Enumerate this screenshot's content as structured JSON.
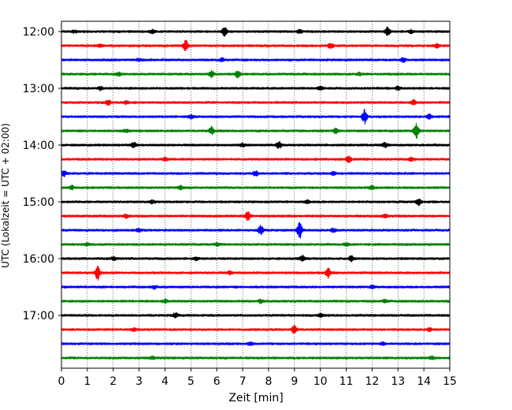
{
  "chart_data": {
    "type": "line",
    "title": "",
    "xlabel": "Zeit  [min]",
    "ylabel": "UTC (Lokalzeit = UTC + 02:00)",
    "xlim": [
      0,
      15
    ],
    "xticks": [
      0,
      1,
      2,
      3,
      4,
      5,
      6,
      7,
      8,
      9,
      10,
      11,
      12,
      13,
      14,
      15
    ],
    "yticks": [
      "12:00",
      "13:00",
      "14:00",
      "15:00",
      "16:00",
      "17:00"
    ],
    "grid": "vertical-dotted",
    "trace_interval_min": 15,
    "colors": [
      "#000000",
      "#ff0000",
      "#0000ff",
      "#008000"
    ],
    "traces": [
      {
        "start": "12:00",
        "color": "#000000",
        "events": [
          [
            6.3,
            6
          ],
          [
            12.6,
            5
          ],
          [
            3.5,
            2
          ],
          [
            9.2,
            2
          ],
          [
            13.5,
            2
          ],
          [
            0.5,
            1.5
          ]
        ]
      },
      {
        "start": "12:15",
        "color": "#ff0000",
        "events": [
          [
            4.8,
            7
          ],
          [
            10.4,
            3
          ],
          [
            14.5,
            2
          ],
          [
            1.5,
            1.5
          ]
        ]
      },
      {
        "start": "12:30",
        "color": "#0000ff",
        "events": [
          [
            6.2,
            2
          ],
          [
            13.2,
            3
          ],
          [
            3.0,
            1.5
          ]
        ]
      },
      {
        "start": "12:45",
        "color": "#008000",
        "events": [
          [
            5.8,
            4
          ],
          [
            6.8,
            4
          ],
          [
            2.2,
            2
          ],
          [
            11.5,
            2
          ]
        ]
      },
      {
        "start": "13:00",
        "color": "#000000",
        "events": [
          [
            1.5,
            2
          ],
          [
            10.0,
            2
          ],
          [
            13.0,
            2
          ]
        ]
      },
      {
        "start": "13:15",
        "color": "#ff0000",
        "events": [
          [
            1.8,
            3
          ],
          [
            2.5,
            2
          ],
          [
            13.6,
            3
          ]
        ]
      },
      {
        "start": "13:30",
        "color": "#0000ff",
        "events": [
          [
            11.7,
            9
          ],
          [
            14.2,
            3
          ],
          [
            5.0,
            2
          ]
        ]
      },
      {
        "start": "13:45",
        "color": "#008000",
        "events": [
          [
            13.7,
            10
          ],
          [
            5.8,
            5
          ],
          [
            10.6,
            3
          ],
          [
            2.5,
            2
          ]
        ]
      },
      {
        "start": "14:00",
        "color": "#000000",
        "events": [
          [
            8.4,
            5
          ],
          [
            2.8,
            3
          ],
          [
            12.5,
            3
          ],
          [
            7.0,
            2
          ]
        ]
      },
      {
        "start": "14:15",
        "color": "#ff0000",
        "events": [
          [
            11.1,
            4
          ],
          [
            4.0,
            2
          ],
          [
            13.5,
            2
          ]
        ]
      },
      {
        "start": "14:30",
        "color": "#0000ff",
        "events": [
          [
            0.1,
            3
          ],
          [
            7.5,
            3
          ],
          [
            10.5,
            2
          ]
        ]
      },
      {
        "start": "14:45",
        "color": "#008000",
        "events": [
          [
            0.4,
            2
          ],
          [
            4.6,
            2
          ],
          [
            12.0,
            2
          ]
        ]
      },
      {
        "start": "15:00",
        "color": "#000000",
        "events": [
          [
            13.8,
            4
          ],
          [
            9.5,
            2
          ],
          [
            3.5,
            2
          ]
        ]
      },
      {
        "start": "15:15",
        "color": "#ff0000",
        "events": [
          [
            7.2,
            5
          ],
          [
            2.5,
            2
          ],
          [
            12.5,
            2
          ]
        ]
      },
      {
        "start": "15:30",
        "color": "#0000ff",
        "events": [
          [
            9.2,
            11
          ],
          [
            7.7,
            6
          ],
          [
            10.5,
            2
          ],
          [
            3.0,
            2
          ]
        ]
      },
      {
        "start": "15:45",
        "color": "#008000",
        "events": [
          [
            11.0,
            2
          ],
          [
            6.0,
            2
          ],
          [
            1.0,
            1.5
          ]
        ]
      },
      {
        "start": "16:00",
        "color": "#000000",
        "events": [
          [
            9.3,
            4
          ],
          [
            11.2,
            3
          ],
          [
            5.2,
            2
          ],
          [
            2.0,
            2
          ]
        ]
      },
      {
        "start": "16:15",
        "color": "#ff0000",
        "events": [
          [
            1.4,
            9
          ],
          [
            10.3,
            6
          ],
          [
            6.5,
            2
          ]
        ]
      },
      {
        "start": "16:30",
        "color": "#0000ff",
        "events": [
          [
            3.6,
            2
          ],
          [
            12.0,
            2
          ]
        ]
      },
      {
        "start": "16:45",
        "color": "#008000",
        "events": [
          [
            4.0,
            2
          ],
          [
            7.7,
            2
          ],
          [
            12.5,
            2
          ]
        ]
      },
      {
        "start": "17:00",
        "color": "#000000",
        "events": [
          [
            4.4,
            3
          ],
          [
            10.0,
            2
          ]
        ]
      },
      {
        "start": "17:15",
        "color": "#ff0000",
        "events": [
          [
            9.0,
            5
          ],
          [
            2.8,
            2
          ],
          [
            14.2,
            2
          ]
        ]
      },
      {
        "start": "17:30",
        "color": "#0000ff",
        "events": [
          [
            7.3,
            1.5
          ],
          [
            12.4,
            1.5
          ]
        ]
      },
      {
        "start": "17:45",
        "color": "#008000",
        "events": [
          [
            3.5,
            1.5
          ],
          [
            14.3,
            2
          ]
        ]
      }
    ]
  }
}
